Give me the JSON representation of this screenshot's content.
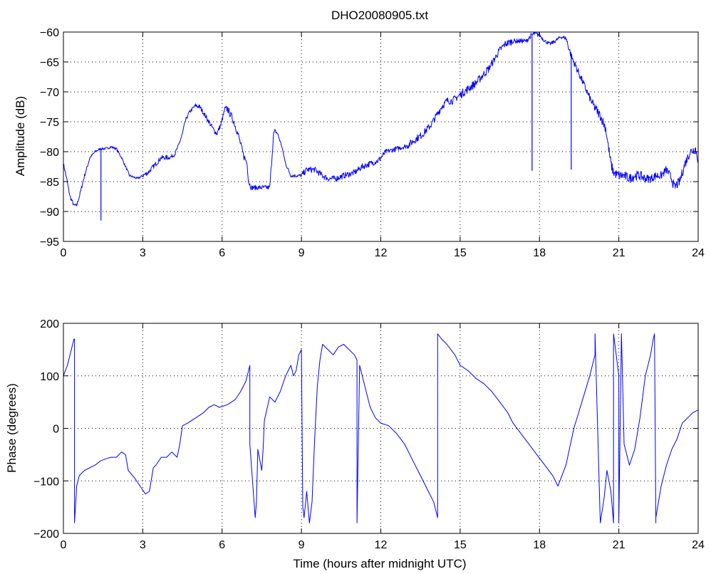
{
  "colors": {
    "series": "#0000ff",
    "background": "#ffffff",
    "axes": "#000000"
  },
  "chart_data": [
    {
      "type": "line",
      "title": "DHO20080905.txt",
      "xlabel": "",
      "ylabel": "Amplitude (dB)",
      "xlim": [
        0,
        24
      ],
      "ylim": [
        -95,
        -60
      ],
      "xticks": [
        0,
        3,
        6,
        9,
        12,
        15,
        18,
        21,
        24
      ],
      "yticks": [
        -95,
        -90,
        -85,
        -80,
        -75,
        -70,
        -65,
        -60
      ],
      "grid": true,
      "noise": [
        0.3,
        0.2,
        0.2,
        0.4,
        0.3,
        0.4,
        0.6,
        0.4,
        0.3,
        0.5,
        0.5,
        0.5,
        0.4,
        0.6,
        0.6,
        0.7,
        0.6,
        0.4,
        0.3,
        0.6,
        0.8,
        0.8,
        0.7,
        0.8,
        0.9,
        0.8
      ],
      "series": [
        {
          "x": [
            0,
            0.1,
            0.25,
            0.4,
            0.5,
            0.6,
            0.8,
            1.0,
            1.2,
            1.4,
            1.6,
            1.8,
            2.0,
            2.2,
            2.35,
            2.5,
            2.8,
            3.0,
            3.2,
            3.5,
            3.7,
            4.0,
            4.2,
            4.35,
            4.5,
            4.6,
            4.75,
            4.9,
            5.0,
            5.15,
            5.3,
            5.5,
            5.7,
            5.8,
            5.95,
            6.1,
            6.2,
            6.4,
            6.6,
            6.8,
            6.95,
            7.0,
            7.1,
            7.5,
            7.8,
            7.95,
            8.0,
            8.1,
            8.25,
            8.4,
            8.5,
            8.6,
            8.8,
            9.0,
            9.2,
            9.5,
            9.8,
            10.0,
            10.3,
            10.6,
            11.0,
            11.3,
            11.6,
            11.9,
            12.2,
            12.6,
            13.0,
            13.3,
            13.6,
            13.9,
            14.1,
            14.3,
            14.5,
            14.7,
            15.0,
            15.3,
            15.6,
            15.9,
            16.1,
            16.3,
            16.5,
            16.7,
            17.0,
            17.3,
            17.5,
            17.6,
            17.7,
            17.8,
            18.0,
            18.2,
            18.4,
            18.6,
            18.8,
            19.0,
            19.2,
            19.4,
            19.7,
            20.0,
            20.3,
            20.5,
            20.6,
            20.7,
            20.8,
            21.0,
            21.2,
            21.4,
            21.6,
            21.8,
            22.0,
            22.2,
            22.4,
            22.6,
            22.8,
            23.0,
            23.1,
            23.3,
            23.5,
            23.7,
            23.9,
            24.0
          ],
          "y": [
            -82,
            -84,
            -87.5,
            -89,
            -89,
            -87.5,
            -84,
            -81,
            -80,
            -79.5,
            -79.5,
            -79.2,
            -79.5,
            -81,
            -82.5,
            -84,
            -84.5,
            -84,
            -83.5,
            -82,
            -81,
            -81,
            -80.5,
            -79,
            -77,
            -75,
            -73.5,
            -72.7,
            -72.3,
            -72.5,
            -73.5,
            -75,
            -76.5,
            -77,
            -75.5,
            -73,
            -72.8,
            -74.5,
            -77,
            -80.5,
            -82,
            -85,
            -86,
            -86,
            -86,
            -77,
            -76.5,
            -77,
            -79,
            -82,
            -83,
            -84,
            -84,
            -84,
            -83,
            -83,
            -84,
            -84.5,
            -84.5,
            -84,
            -83.5,
            -82.5,
            -82,
            -81.5,
            -80,
            -79.5,
            -79,
            -78,
            -77,
            -75.5,
            -74,
            -72.5,
            -71.5,
            -71.5,
            -70.5,
            -69.5,
            -68.5,
            -67,
            -66,
            -64.5,
            -63,
            -62,
            -61.5,
            -61.5,
            -61.5,
            -61,
            -60.5,
            -60.3,
            -60.5,
            -61.5,
            -62,
            -61.5,
            -60.8,
            -61,
            -64,
            -66,
            -69,
            -72,
            -74,
            -76,
            -79,
            -82,
            -83.5,
            -84,
            -84,
            -84.5,
            -84,
            -84,
            -84.5,
            -84.5,
            -84,
            -84,
            -83,
            -84.5,
            -86,
            -85,
            -82,
            -80,
            -79.5,
            -81.5
          ],
          "spikes": [
            {
              "x": 1.42,
              "to": -91.5
            },
            {
              "x": 17.72,
              "to": -83.2
            },
            {
              "x": 19.2,
              "to": -83
            }
          ]
        }
      ]
    },
    {
      "type": "line",
      "title": "",
      "xlabel": "Time (hours after midnight UTC)",
      "ylabel": "Phase (degrees)",
      "xlim": [
        0,
        24
      ],
      "ylim": [
        -200,
        200
      ],
      "xticks": [
        0,
        3,
        6,
        9,
        12,
        15,
        18,
        21,
        24
      ],
      "yticks": [
        -200,
        -100,
        0,
        100,
        200
      ],
      "grid": true,
      "series": [
        {
          "x": [
            0,
            0.15,
            0.3,
            0.4,
            0.42,
            0.42,
            0.5,
            0.6,
            0.8,
            1.0,
            1.2,
            1.4,
            1.6,
            1.8,
            2.0,
            2.2,
            2.35,
            2.45,
            2.7,
            2.9,
            3.1,
            3.25,
            3.4,
            3.5,
            3.7,
            3.9,
            4.1,
            4.3,
            4.4,
            4.5,
            4.7,
            5.0,
            5.3,
            5.5,
            5.7,
            5.9,
            6.2,
            6.5,
            6.7,
            6.9,
            7.0,
            7.05,
            7.05,
            7.25,
            7.3,
            7.35,
            7.5,
            7.55,
            7.6,
            7.8,
            8.0,
            8.2,
            8.4,
            8.6,
            8.7,
            8.8,
            8.9,
            9.0,
            9.05,
            9.1,
            9.2,
            9.3,
            9.4,
            9.5,
            9.6,
            9.7,
            9.8,
            10.0,
            10.2,
            10.4,
            10.6,
            10.8,
            11.0,
            11.1,
            11.1,
            11.2,
            11.4,
            11.6,
            11.8,
            12.0,
            12.3,
            12.6,
            12.9,
            13.2,
            13.5,
            13.8,
            14.0,
            14.15,
            14.15,
            14.3,
            14.5,
            14.8,
            15.0,
            15.3,
            15.6,
            15.9,
            16.2,
            16.5,
            16.8,
            17.0,
            17.3,
            17.6,
            17.9,
            18.2,
            18.5,
            18.7,
            19.0,
            19.3,
            19.6,
            19.9,
            20.1,
            20.1,
            20.3,
            20.45,
            20.55,
            20.7,
            20.8,
            20.8,
            20.95,
            21.0,
            21.0,
            21.1,
            21.2,
            21.4,
            21.6,
            21.8,
            22.0,
            22.2,
            22.3,
            22.35,
            22.4,
            22.4,
            22.6,
            22.8,
            23.0,
            23.2,
            23.4,
            23.6,
            23.8,
            24.0
          ],
          "y": [
            100,
            120,
            150,
            170,
            170,
            -180,
            -110,
            -90,
            -80,
            -75,
            -70,
            -62,
            -58,
            -55,
            -55,
            -45,
            -50,
            -80,
            -95,
            -110,
            -125,
            -120,
            -75,
            -70,
            -55,
            -55,
            -45,
            -55,
            -30,
            5,
            10,
            20,
            30,
            40,
            45,
            40,
            45,
            55,
            70,
            90,
            110,
            120,
            -30,
            -170,
            -140,
            -40,
            -80,
            -40,
            15,
            60,
            50,
            70,
            100,
            120,
            100,
            110,
            140,
            150,
            -150,
            -170,
            -120,
            -180,
            -140,
            -20,
            80,
            130,
            160,
            150,
            140,
            155,
            160,
            150,
            140,
            130,
            -180,
            120,
            80,
            40,
            20,
            10,
            5,
            -10,
            -30,
            -60,
            -90,
            -120,
            -140,
            -170,
            180,
            170,
            160,
            140,
            120,
            110,
            95,
            85,
            70,
            50,
            30,
            10,
            -10,
            -30,
            -50,
            -70,
            -90,
            -110,
            -70,
            0,
            50,
            100,
            140,
            180,
            -180,
            -130,
            -80,
            -120,
            -180,
            180,
            120,
            100,
            -180,
            180,
            -30,
            -70,
            -40,
            20,
            100,
            140,
            170,
            180,
            -180,
            -170,
            -110,
            -70,
            -40,
            -20,
            10,
            20,
            30,
            35
          ]
        }
      ]
    }
  ]
}
